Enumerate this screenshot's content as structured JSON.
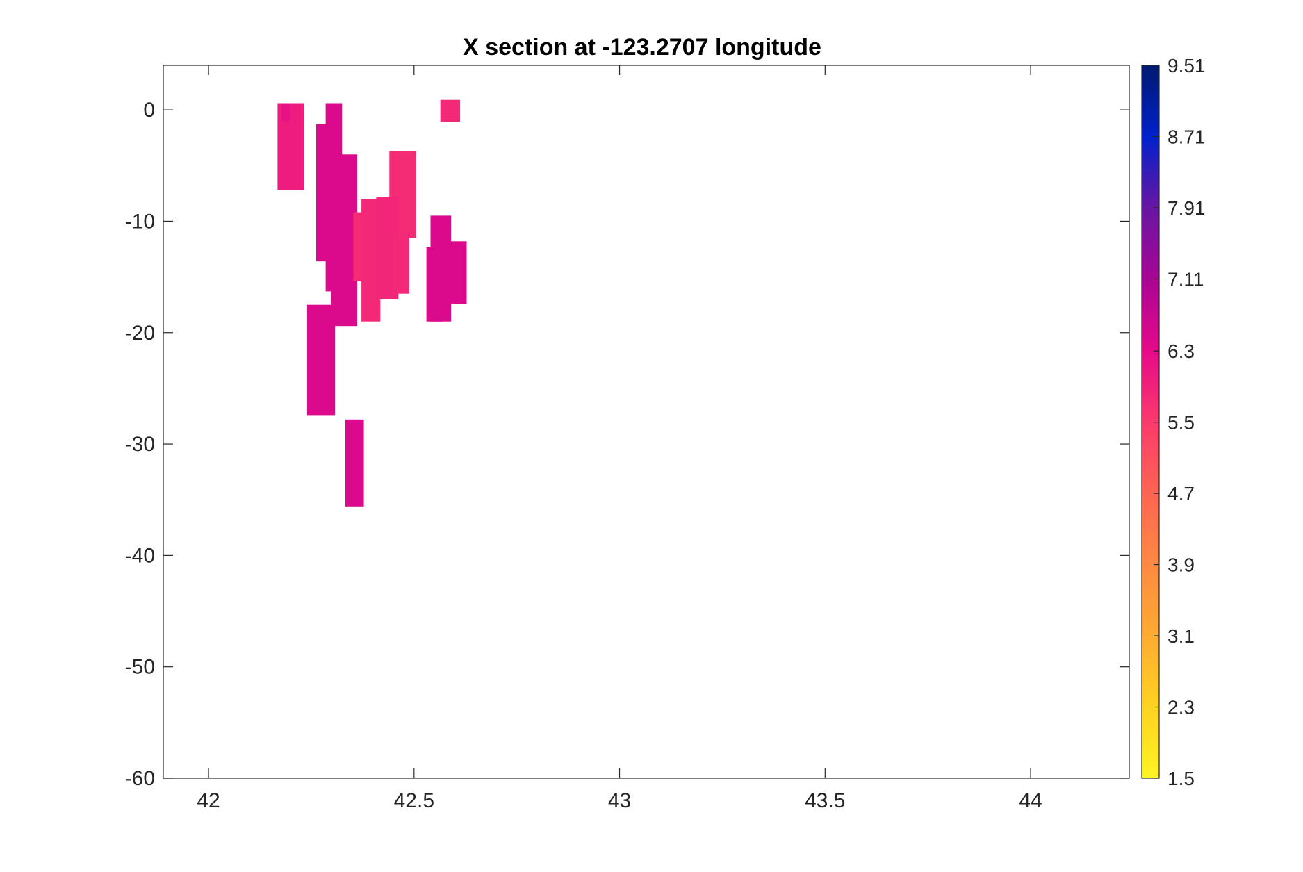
{
  "chart_data": {
    "type": "heatmap",
    "title": "X section at -123.2707 longitude",
    "xlabel": "",
    "ylabel": "",
    "xlim": [
      41.89,
      44.24
    ],
    "ylim": [
      -60,
      4
    ],
    "x_ticks": [
      "42",
      "42.5",
      "43",
      "43.5",
      "44"
    ],
    "x_tick_values": [
      42,
      42.5,
      43,
      43.5,
      44
    ],
    "y_ticks": [
      "0",
      "-10",
      "-20",
      "-30",
      "-40",
      "-50",
      "-60"
    ],
    "y_tick_values": [
      0,
      -10,
      -20,
      -30,
      -40,
      -50,
      -60
    ],
    "grid": false,
    "colorbar": {
      "ticks": [
        "9.51",
        "8.71",
        "7.91",
        "7.11",
        "6.3",
        "5.5",
        "4.7",
        "3.9",
        "3.1",
        "2.3",
        "1.5"
      ],
      "tick_values": [
        9.51,
        8.71,
        7.91,
        7.11,
        6.3,
        5.5,
        4.7,
        3.9,
        3.1,
        2.3,
        1.5
      ],
      "range": [
        1.5,
        9.51
      ],
      "colormap": [
        [
          1.5,
          "#fff323"
        ],
        [
          2.3,
          "#fed222"
        ],
        [
          3.1,
          "#fdab32"
        ],
        [
          3.9,
          "#fd8a42"
        ],
        [
          4.7,
          "#fd6552"
        ],
        [
          5.5,
          "#fb3a6c"
        ],
        [
          6.3,
          "#e60a8a"
        ],
        [
          7.11,
          "#a80594"
        ],
        [
          7.91,
          "#6816a3"
        ],
        [
          8.71,
          "#0021cc"
        ],
        [
          9.51,
          "#001a6f"
        ]
      ]
    },
    "patches": [
      {
        "x": [
          42.168,
          42.232
        ],
        "y": [
          0.6,
          -7.2
        ],
        "value": 6.0
      },
      {
        "x": [
          42.178,
          42.198
        ],
        "y": [
          0.6,
          -1.0
        ],
        "value": 6.2
      },
      {
        "x": [
          42.262,
          42.305
        ],
        "y": [
          -1.3,
          -13.6
        ],
        "value": 6.45
      },
      {
        "x": [
          42.285,
          42.325
        ],
        "y": [
          0.6,
          -16.3
        ],
        "value": 6.45
      },
      {
        "x": [
          42.298,
          42.362
        ],
        "y": [
          -4.0,
          -19.4
        ],
        "value": 6.45
      },
      {
        "x": [
          42.352,
          42.472
        ],
        "y": [
          -9.2,
          -15.4
        ],
        "value": 5.75
      },
      {
        "x": [
          42.372,
          42.418
        ],
        "y": [
          -8.0,
          -19.0
        ],
        "value": 5.8
      },
      {
        "x": [
          42.44,
          42.505
        ],
        "y": [
          -3.7,
          -11.5
        ],
        "value": 5.75
      },
      {
        "x": [
          42.408,
          42.462
        ],
        "y": [
          -7.8,
          -17.0
        ],
        "value": 5.85
      },
      {
        "x": [
          42.447,
          42.488
        ],
        "y": [
          -11.0,
          -16.5
        ],
        "value": 5.8
      },
      {
        "x": [
          42.54,
          42.59
        ],
        "y": [
          -9.5,
          -19.0
        ],
        "value": 6.45
      },
      {
        "x": [
          42.53,
          42.57
        ],
        "y": [
          -12.3,
          -19.0
        ],
        "value": 6.45
      },
      {
        "x": [
          42.57,
          42.628
        ],
        "y": [
          -11.8,
          -17.4
        ],
        "value": 6.45
      },
      {
        "x": [
          42.564,
          42.612
        ],
        "y": [
          0.9,
          -1.1
        ],
        "value": 5.8
      },
      {
        "x": [
          42.24,
          42.308
        ],
        "y": [
          -17.5,
          -27.4
        ],
        "value": 6.45
      },
      {
        "x": [
          42.333,
          42.378
        ],
        "y": [
          -27.8,
          -35.6
        ],
        "value": 6.45
      }
    ]
  }
}
